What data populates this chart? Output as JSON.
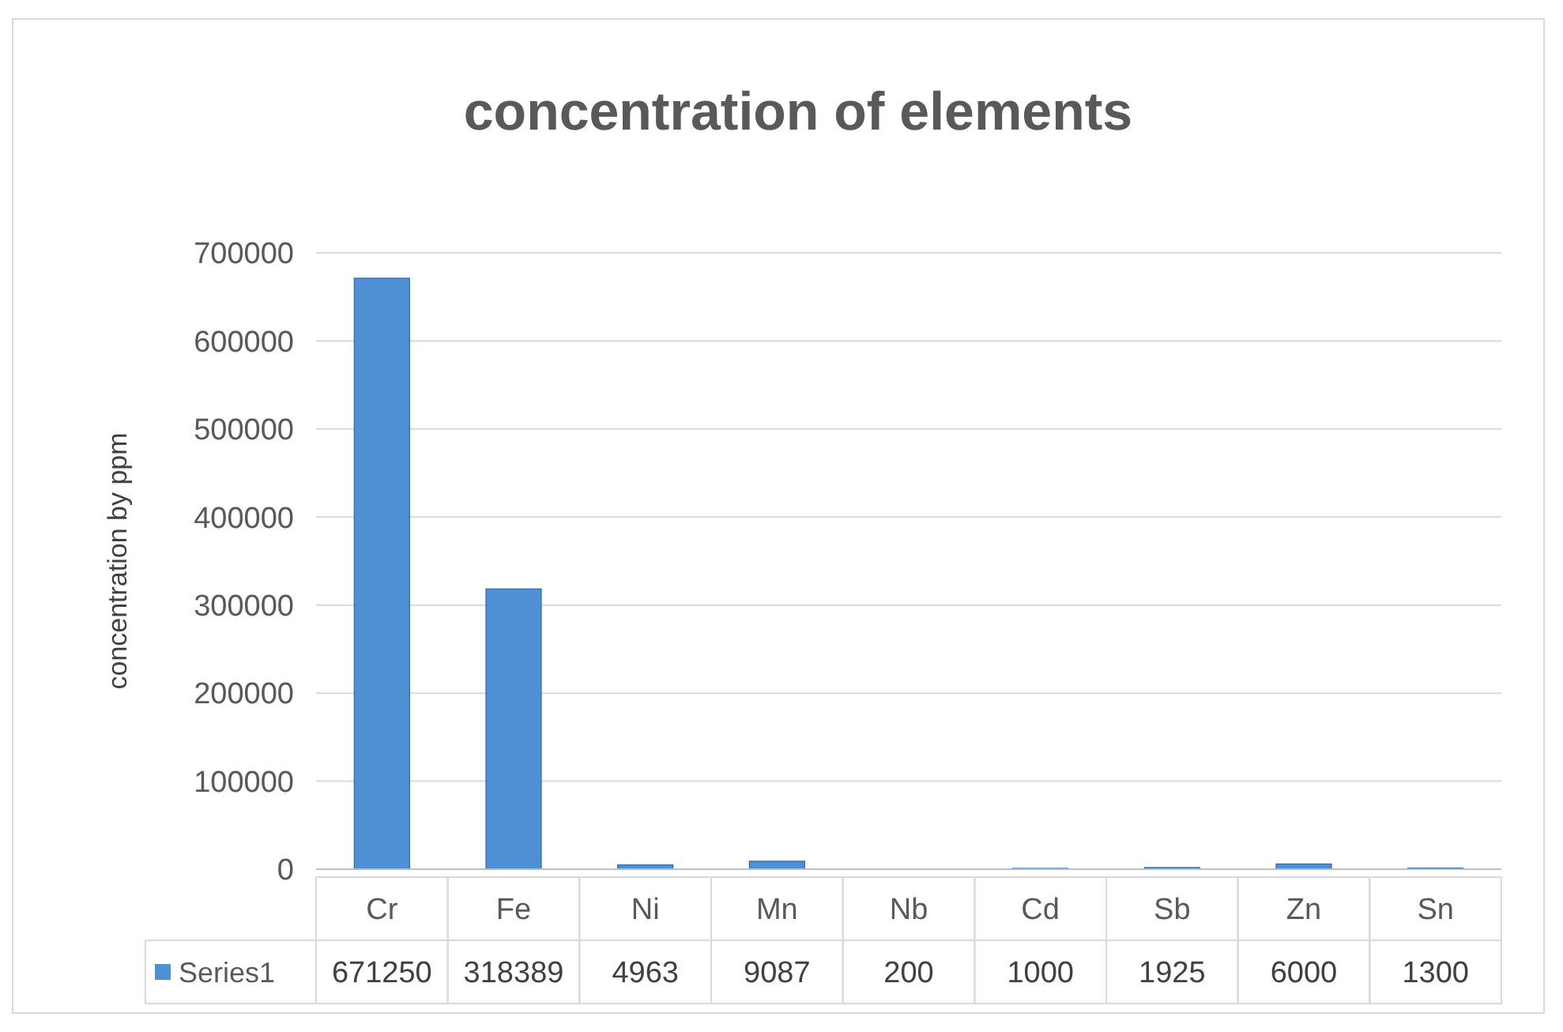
{
  "chart_data": {
    "type": "bar",
    "title": "concentration of elements",
    "ylabel": "concentration by ppm",
    "categories": [
      "Cr",
      "Fe",
      "Ni",
      "Mn",
      "Nb",
      "Cd",
      "Sb",
      "Zn",
      "Sn"
    ],
    "series": [
      {
        "name": "Series1",
        "color": "#4f8fd4",
        "values": [
          671250,
          318389,
          4963,
          9087,
          200,
          1000,
          1925,
          6000,
          1300
        ]
      }
    ],
    "ylim": [
      0,
      700000
    ],
    "yticks": [
      0,
      100000,
      200000,
      300000,
      400000,
      500000,
      600000,
      700000
    ],
    "grid": "y",
    "data_labels": true
  }
}
